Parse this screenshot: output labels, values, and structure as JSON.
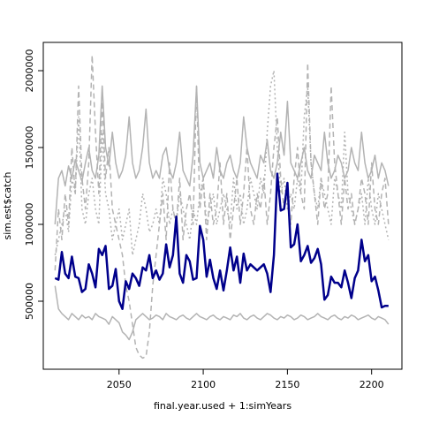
{
  "chart_data": {
    "type": "line",
    "xlabel": "final.year.used + 1:simYears",
    "ylabel": "sim.est$catch",
    "x": [
      2012,
      2014,
      2016,
      2018,
      2020,
      2022,
      2024,
      2026,
      2028,
      2030,
      2032,
      2034,
      2036,
      2038,
      2040,
      2042,
      2044,
      2046,
      2048,
      2050,
      2052,
      2054,
      2056,
      2058,
      2060,
      2062,
      2064,
      2066,
      2068,
      2070,
      2072,
      2074,
      2076,
      2078,
      2080,
      2082,
      2084,
      2086,
      2088,
      2090,
      2092,
      2094,
      2096,
      2098,
      2100,
      2102,
      2104,
      2106,
      2108,
      2110,
      2112,
      2114,
      2116,
      2118,
      2120,
      2122,
      2124,
      2126,
      2128,
      2130,
      2132,
      2134,
      2136,
      2138,
      2140,
      2142,
      2144,
      2146,
      2148,
      2150,
      2152,
      2154,
      2156,
      2158,
      2160,
      2162,
      2164,
      2166,
      2168,
      2170,
      2172,
      2174,
      2176,
      2178,
      2180,
      2182,
      2184,
      2186,
      2188,
      2190,
      2192,
      2194,
      2196,
      2198,
      2200,
      2202,
      2204,
      2206,
      2208,
      2210
    ],
    "xlim": [
      2005,
      2218
    ],
    "xticks": [
      2050,
      2100,
      2150,
      2200
    ],
    "ylim": [
      57500,
      2184000
    ],
    "yticks": [
      500000,
      1000000,
      1500000,
      2000000
    ],
    "series": [
      {
        "color": "#b3b3b3",
        "dash": "solid",
        "width": 1.5,
        "values": [
          1000000,
          1300000,
          1350000,
          1250000,
          1380000,
          1300000,
          1420000,
          1350000,
          1280000,
          1400000,
          1500000,
          1350000,
          1300000,
          1450000,
          1900000,
          1500000,
          1380000,
          1600000,
          1400000,
          1300000,
          1350000,
          1450000,
          1700000,
          1400000,
          1300000,
          1350000,
          1500000,
          1750000,
          1400000,
          1300000,
          1350000,
          1300000,
          1450000,
          1500000,
          1350000,
          1300000,
          1400000,
          1600000,
          1350000,
          1300000,
          1250000,
          1450000,
          1900000,
          1400000,
          1300000,
          1350000,
          1400000,
          1300000,
          1500000,
          1350000,
          1300000,
          1400000,
          1450000,
          1350000,
          1300000,
          1400000,
          1700000,
          1500000,
          1400000,
          1350000,
          1300000,
          1450000,
          1400000,
          1550000,
          1350000,
          1300000,
          1400000,
          1600000,
          1450000,
          1800000,
          1400000,
          1350000,
          1300000,
          1400000,
          1500000,
          1350000,
          1300000,
          1450000,
          1400000,
          1350000,
          1600000,
          1400000,
          1300000,
          1350000,
          1450000,
          1400000,
          1300000,
          1350000,
          1500000,
          1400000,
          1350000,
          1600000,
          1400000,
          1300000,
          1350000,
          1450000,
          1300000,
          1400000,
          1350000,
          1250000
        ]
      },
      {
        "color": "#b3b3b3",
        "dash": "solid",
        "width": 1.5,
        "values": [
          600000,
          450000,
          420000,
          400000,
          380000,
          420000,
          400000,
          380000,
          410000,
          390000,
          400000,
          380000,
          420000,
          400000,
          390000,
          380000,
          350000,
          400000,
          380000,
          360000,
          300000,
          280000,
          250000,
          300000,
          380000,
          400000,
          420000,
          400000,
          380000,
          390000,
          410000,
          400000,
          380000,
          420000,
          400000,
          390000,
          380000,
          400000,
          410000,
          390000,
          380000,
          400000,
          420000,
          400000,
          390000,
          380000,
          400000,
          410000,
          390000,
          380000,
          400000,
          390000,
          380000,
          410000,
          400000,
          420000,
          390000,
          380000,
          400000,
          410000,
          390000,
          380000,
          400000,
          420000,
          410000,
          390000,
          380000,
          400000,
          390000,
          410000,
          400000,
          380000,
          390000,
          410000,
          400000,
          380000,
          390000,
          400000,
          420000,
          400000,
          390000,
          380000,
          400000,
          410000,
          390000,
          380000,
          400000,
          390000,
          410000,
          400000,
          380000,
          390000,
          400000,
          410000,
          390000,
          380000,
          400000,
          390000,
          380000,
          350000
        ]
      },
      {
        "color": "#b3b3b3",
        "dash": "dashed",
        "width": 1.5,
        "values": [
          700000,
          1100000,
          900000,
          1200000,
          1000000,
          1500000,
          1200000,
          1900000,
          1300000,
          1100000,
          1400000,
          2100000,
          1600000,
          1200000,
          1800000,
          1300000,
          1500000,
          1100000,
          1000000,
          900000,
          800000,
          600000,
          500000,
          350000,
          200000,
          150000,
          130000,
          140000,
          300000,
          600000,
          800000,
          1000000,
          1200000,
          900000,
          1400000,
          1100000,
          1000000,
          1300000,
          900000,
          1100000,
          1200000,
          1000000,
          1900000,
          1100000,
          1300000,
          900000,
          1200000,
          1000000,
          1100000,
          1400000,
          1000000,
          1200000,
          900000,
          1100000,
          1300000,
          1000000,
          1200000,
          1500000,
          1100000,
          1000000,
          1200000,
          1100000,
          1300000,
          1000000,
          1200000,
          1500000,
          1700000,
          1300000,
          1100000,
          1200000,
          1000000,
          1300000,
          1500000,
          1200000,
          1100000,
          2050000,
          1400000,
          1200000,
          1000000,
          1300000,
          1100000,
          1200000,
          1900000,
          1400000,
          1200000,
          1000000,
          1300000,
          1100000,
          1200000,
          1000000,
          1100000,
          1300000,
          1200000,
          1000000,
          1400000,
          1100000,
          1000000,
          1200000,
          1300000,
          1000000
        ]
      },
      {
        "color": "#b3b3b3",
        "dash": "dotted",
        "width": 1.5,
        "values": [
          800000,
          900000,
          1000000,
          1100000,
          950000,
          1300000,
          1200000,
          1700000,
          1100000,
          1000000,
          1200000,
          1300000,
          1100000,
          1000000,
          1600000,
          1200000,
          1100000,
          900000,
          1000000,
          1100000,
          900000,
          1000000,
          1100000,
          800000,
          900000,
          1000000,
          1200000,
          1100000,
          950000,
          1000000,
          1100000,
          1000000,
          1300000,
          1200000,
          1000000,
          1100000,
          1000000,
          1200000,
          1100000,
          1000000,
          900000,
          1100000,
          1000000,
          1200000,
          1300000,
          1000000,
          1100000,
          1200000,
          1000000,
          1100000,
          1200000,
          1100000,
          1000000,
          1300000,
          1100000,
          1200000,
          1000000,
          1100000,
          1300000,
          1200000,
          1100000,
          1300000,
          1200000,
          1600000,
          1900000,
          2000000,
          1500000,
          1200000,
          1300000,
          1100000,
          1200000,
          1100000,
          1300000,
          1200000,
          1700000,
          1900000,
          1400000,
          1200000,
          1100000,
          1300000,
          1200000,
          1100000,
          1000000,
          1300000,
          1200000,
          1100000,
          1600000,
          1200000,
          1100000,
          1000000,
          1100000,
          1200000,
          1000000,
          1300000,
          1100000,
          1000000,
          1200000,
          1100000,
          1000000,
          900000
        ]
      },
      {
        "color": "#00008b",
        "dash": "solid",
        "width": 2.5,
        "values": [
          650000,
          640000,
          820000,
          680000,
          650000,
          790000,
          660000,
          650000,
          560000,
          580000,
          740000,
          680000,
          590000,
          840000,
          800000,
          860000,
          580000,
          600000,
          710000,
          500000,
          450000,
          630000,
          580000,
          680000,
          650000,
          600000,
          720000,
          700000,
          800000,
          650000,
          700000,
          640000,
          680000,
          870000,
          720000,
          800000,
          1050000,
          680000,
          620000,
          800000,
          760000,
          640000,
          650000,
          990000,
          900000,
          660000,
          770000,
          650000,
          580000,
          700000,
          570000,
          700000,
          850000,
          700000,
          790000,
          620000,
          810000,
          700000,
          740000,
          720000,
          700000,
          720000,
          740000,
          680000,
          560000,
          800000,
          1330000,
          1090000,
          1100000,
          1270000,
          850000,
          870000,
          1000000,
          760000,
          800000,
          860000,
          750000,
          780000,
          840000,
          740000,
          510000,
          540000,
          660000,
          620000,
          620000,
          590000,
          700000,
          620000,
          520000,
          650000,
          700000,
          900000,
          760000,
          800000,
          630000,
          660000,
          570000,
          460000,
          470000,
          470000
        ]
      }
    ]
  }
}
